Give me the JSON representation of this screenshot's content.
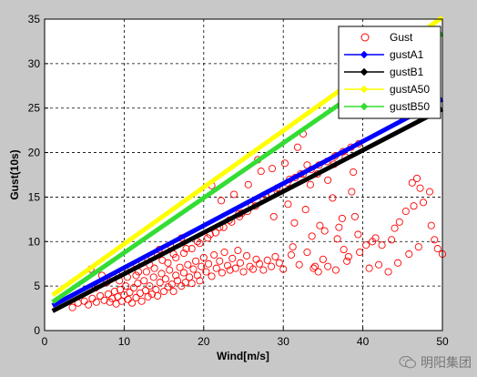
{
  "chart_data": {
    "type": "scatter",
    "xlabel": "Wind[m/s]",
    "ylabel": "Gust(10s)",
    "xlim": [
      0,
      50
    ],
    "ylim": [
      0,
      35
    ],
    "xticks": [
      0,
      10,
      20,
      30,
      40,
      50
    ],
    "yticks": [
      0,
      5,
      10,
      15,
      20,
      25,
      30,
      35
    ],
    "grid": true,
    "legend_position": "top-right",
    "scatter_series": {
      "name": "Gust",
      "color": "#ff0000",
      "marker": "open-circle",
      "points": [
        [
          3.5,
          2.6
        ],
        [
          4.2,
          3.1
        ],
        [
          5.0,
          3.3
        ],
        [
          5.5,
          2.9
        ],
        [
          6.0,
          3.6
        ],
        [
          6.5,
          3.2
        ],
        [
          7.0,
          3.9
        ],
        [
          7.5,
          3.4
        ],
        [
          8.0,
          4.1
        ],
        [
          8.2,
          3.2
        ],
        [
          8.5,
          3.6
        ],
        [
          8.8,
          4.4
        ],
        [
          9.0,
          3.0
        ],
        [
          9.2,
          3.8
        ],
        [
          9.5,
          4.6
        ],
        [
          9.7,
          3.3
        ],
        [
          10.0,
          4.0
        ],
        [
          10.2,
          5.0
        ],
        [
          10.5,
          3.5
        ],
        [
          10.7,
          4.3
        ],
        [
          11.0,
          3.1
        ],
        [
          11.2,
          4.8
        ],
        [
          11.5,
          3.7
        ],
        [
          11.7,
          5.3
        ],
        [
          12.0,
          4.2
        ],
        [
          12.2,
          3.3
        ],
        [
          12.5,
          5.6
        ],
        [
          12.7,
          4.5
        ],
        [
          13.0,
          3.8
        ],
        [
          13.2,
          5.0
        ],
        [
          13.5,
          4.1
        ],
        [
          13.7,
          6.0
        ],
        [
          14.0,
          4.6
        ],
        [
          14.2,
          3.9
        ],
        [
          14.5,
          5.4
        ],
        [
          14.7,
          6.4
        ],
        [
          15.0,
          4.4
        ],
        [
          15.2,
          5.8
        ],
        [
          15.5,
          4.9
        ],
        [
          15.7,
          6.8
        ],
        [
          16.0,
          5.2
        ],
        [
          16.2,
          4.4
        ],
        [
          16.5,
          6.2
        ],
        [
          16.7,
          5.6
        ],
        [
          17.0,
          7.1
        ],
        [
          17.2,
          5.0
        ],
        [
          17.5,
          6.5
        ],
        [
          17.7,
          5.4
        ],
        [
          18.0,
          7.4
        ],
        [
          18.2,
          6.0
        ],
        [
          18.5,
          5.3
        ],
        [
          18.7,
          6.9
        ],
        [
          19.0,
          7.8
        ],
        [
          19.2,
          6.2
        ],
        [
          19.5,
          5.6
        ],
        [
          19.7,
          7.2
        ],
        [
          20.0,
          8.2
        ],
        [
          20.3,
          6.6
        ],
        [
          20.6,
          7.5
        ],
        [
          21.0,
          6.1
        ],
        [
          21.3,
          8.5
        ],
        [
          21.6,
          7.0
        ],
        [
          22.0,
          7.8
        ],
        [
          22.3,
          6.5
        ],
        [
          22.6,
          8.8
        ],
        [
          23.0,
          7.3
        ],
        [
          23.3,
          6.8
        ],
        [
          23.6,
          8.1
        ],
        [
          24.0,
          7.0
        ],
        [
          24.3,
          9.0
        ],
        [
          24.6,
          7.6
        ],
        [
          25.0,
          6.6
        ],
        [
          25.4,
          8.4
        ],
        [
          25.8,
          7.2
        ],
        [
          26.2,
          6.9
        ],
        [
          26.6,
          8.0
        ],
        [
          27.0,
          7.5
        ],
        [
          27.5,
          6.8
        ],
        [
          28.0,
          7.9
        ],
        [
          28.5,
          7.2
        ],
        [
          29.0,
          8.3
        ],
        [
          29.5,
          7.6
        ],
        [
          30.0,
          6.9
        ],
        [
          31.0,
          8.5
        ],
        [
          32.0,
          7.4
        ],
        [
          33.0,
          8.8
        ],
        [
          34.0,
          7.2
        ],
        [
          35.0,
          8.0
        ],
        [
          11.5,
          6.2
        ],
        [
          12.8,
          6.6
        ],
        [
          13.8,
          7.0
        ],
        [
          15.5,
          7.6
        ],
        [
          16.5,
          8.2
        ],
        [
          17.5,
          8.7
        ],
        [
          18.5,
          9.2
        ],
        [
          19.5,
          9.8
        ],
        [
          20.5,
          10.4
        ],
        [
          21.5,
          11.0
        ],
        [
          22.5,
          11.6
        ],
        [
          23.5,
          12.2
        ],
        [
          24.5,
          12.8
        ],
        [
          25.5,
          13.4
        ],
        [
          26.5,
          14.0
        ],
        [
          27.5,
          14.8
        ],
        [
          28.5,
          15.4
        ],
        [
          29.5,
          16.0
        ],
        [
          30.5,
          16.6
        ],
        [
          31.5,
          17.2
        ],
        [
          32.5,
          17.6
        ],
        [
          33.5,
          18.1
        ],
        [
          34.5,
          18.6
        ],
        [
          35.5,
          19.0
        ],
        [
          36.5,
          19.6
        ],
        [
          37.5,
          20.1
        ],
        [
          38.5,
          20.6
        ],
        [
          39.5,
          21.0
        ],
        [
          26.8,
          19.2
        ],
        [
          28.6,
          18.2
        ],
        [
          30.2,
          18.8
        ],
        [
          31.8,
          20.6
        ],
        [
          32.5,
          22.1
        ],
        [
          33.4,
          16.4
        ],
        [
          34.3,
          17.6
        ],
        [
          35.6,
          16.9
        ],
        [
          36.4,
          18.7
        ],
        [
          37.8,
          19.5
        ],
        [
          38.8,
          17.8
        ],
        [
          21.0,
          16.3
        ],
        [
          22.2,
          14.6
        ],
        [
          23.8,
          15.3
        ],
        [
          24.4,
          13.1
        ],
        [
          25.6,
          16.4
        ],
        [
          27.2,
          17.9
        ],
        [
          28.8,
          12.8
        ],
        [
          30.6,
          14.2
        ],
        [
          31.4,
          12.1
        ],
        [
          32.8,
          13.6
        ],
        [
          34.6,
          11.8
        ],
        [
          36.2,
          14.9
        ],
        [
          37.4,
          12.6
        ],
        [
          38.6,
          15.6
        ],
        [
          31.2,
          9.4
        ],
        [
          33.6,
          10.6
        ],
        [
          35.2,
          11.2
        ],
        [
          36.8,
          10.3
        ],
        [
          37.6,
          9.1
        ],
        [
          38.2,
          8.3
        ],
        [
          39.4,
          10.8
        ],
        [
          40.4,
          9.6
        ],
        [
          41.2,
          10.0
        ],
        [
          42.4,
          9.6
        ],
        [
          43.6,
          10.2
        ],
        [
          44.6,
          12.2
        ],
        [
          45.4,
          13.4
        ],
        [
          46.2,
          16.6
        ],
        [
          46.8,
          17.1
        ],
        [
          47.2,
          16.0
        ],
        [
          47.6,
          14.4
        ],
        [
          48.4,
          15.6
        ],
        [
          49.0,
          10.2
        ],
        [
          49.4,
          9.2
        ],
        [
          50.0,
          8.6
        ],
        [
          48.6,
          11.8
        ],
        [
          47.0,
          9.4
        ],
        [
          45.8,
          8.6
        ],
        [
          44.4,
          7.6
        ],
        [
          43.2,
          6.6
        ],
        [
          42.0,
          7.4
        ],
        [
          40.8,
          7.0
        ],
        [
          39.6,
          8.8
        ],
        [
          38.0,
          7.8
        ],
        [
          36.6,
          6.8
        ],
        [
          35.6,
          7.2
        ],
        [
          34.4,
          6.6
        ],
        [
          33.8,
          7.0
        ],
        [
          44.0,
          11.5
        ],
        [
          46.4,
          14.0
        ],
        [
          41.6,
          10.4
        ],
        [
          39.0,
          12.8
        ],
        [
          37.0,
          11.6
        ],
        [
          5.8,
          6.9
        ],
        [
          7.2,
          6.2
        ],
        [
          8.6,
          6.0
        ],
        [
          9.8,
          6.6
        ],
        [
          10.8,
          7.2
        ],
        [
          12.2,
          7.8
        ],
        [
          13.4,
          8.4
        ],
        [
          14.4,
          9.1
        ],
        [
          15.8,
          9.6
        ],
        [
          17.2,
          10.4
        ],
        [
          6.4,
          4.8
        ],
        [
          7.8,
          5.4
        ],
        [
          9.4,
          5.6
        ],
        [
          10.4,
          6.0
        ],
        [
          11.8,
          6.6
        ],
        [
          13.2,
          7.4
        ],
        [
          14.8,
          7.9
        ],
        [
          16.2,
          8.6
        ],
        [
          17.8,
          9.2
        ],
        [
          19.2,
          10.0
        ],
        [
          20.8,
          10.8
        ],
        [
          22.0,
          11.6
        ],
        [
          23.2,
          12.4
        ],
        [
          24.8,
          13.2
        ],
        [
          26.0,
          14.0
        ],
        [
          27.8,
          15.2
        ],
        [
          29.2,
          16.0
        ],
        [
          30.8,
          17.0
        ],
        [
          32.2,
          17.6
        ],
        [
          33.0,
          18.6
        ]
      ]
    },
    "line_series": [
      {
        "name": "gustA1",
        "color": "#0000ff",
        "marker": "diamond",
        "x": [
          1,
          50
        ],
        "y": [
          2.8,
          26.0
        ]
      },
      {
        "name": "gustB1",
        "color": "#000000",
        "marker": "diamond",
        "x": [
          1,
          50
        ],
        "y": [
          2.2,
          24.9
        ]
      },
      {
        "name": "gustA50",
        "color": "#ffff00",
        "marker": "diamond",
        "x": [
          1,
          50
        ],
        "y": [
          4.0,
          35.2
        ]
      },
      {
        "name": "gustB50",
        "color": "#33dd33",
        "marker": "diamond",
        "x": [
          1,
          50
        ],
        "y": [
          3.2,
          33.4
        ]
      }
    ]
  },
  "watermark": {
    "text": "明阳集团",
    "icon": "wechat-icon"
  }
}
